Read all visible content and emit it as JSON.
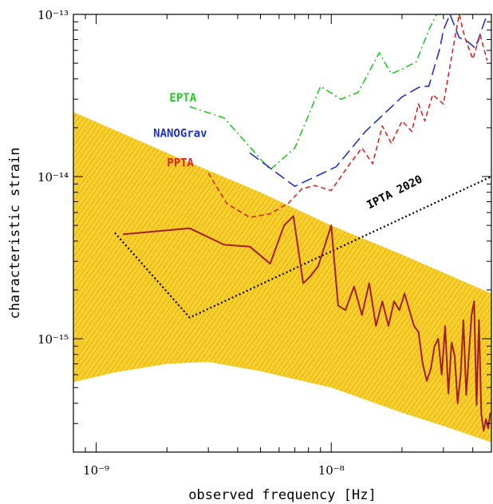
{
  "chart_data": {
    "type": "line",
    "xlabel": "observed frequency [Hz]",
    "ylabel": "characteristic strain",
    "x_scale": "log",
    "y_scale": "log",
    "xlim": [
      8e-10,
      4.8e-08
    ],
    "ylim": [
      2e-16,
      1e-13
    ],
    "x_ticks": [
      {
        "value": 1e-09,
        "label": "10⁻⁹"
      },
      {
        "value": 1e-08,
        "label": "10⁻⁸"
      }
    ],
    "y_ticks": [
      {
        "value": 1e-15,
        "label": "10⁻¹⁵"
      },
      {
        "value": 1e-14,
        "label": "10⁻¹⁴"
      },
      {
        "value": 1e-13,
        "label": "10⁻¹³"
      }
    ],
    "band": {
      "color": "#f2c000",
      "upper": [
        [
          8e-10,
          2.5e-14
        ],
        [
          2e-09,
          1.4e-14
        ],
        [
          5e-09,
          8e-15
        ],
        [
          1e-08,
          5e-15
        ],
        [
          2e-08,
          3.3e-15
        ],
        [
          4.8e-08,
          1.9e-15
        ]
      ],
      "lower": [
        [
          4.8e-08,
          2.3e-16
        ],
        [
          3e-08,
          2.9e-16
        ],
        [
          2e-08,
          3.5e-16
        ],
        [
          1e-08,
          5e-16
        ],
        [
          5e-09,
          6.3e-16
        ],
        [
          3e-09,
          7.2e-16
        ],
        [
          2e-09,
          7e-16
        ],
        [
          1.2e-09,
          6.2e-16
        ],
        [
          8e-10,
          5.4e-16
        ]
      ]
    },
    "series": [
      {
        "name": "EPTA",
        "color": "#22c922",
        "dash": "9,4,2,4",
        "x": [
          2.5e-09,
          3.5e-09,
          5.5e-09,
          7e-09,
          9e-09,
          1.1e-08,
          1.3e-08,
          1.6e-08,
          1.8e-08,
          2e-08,
          2.3e-08,
          2.6e-08,
          2.8e-08,
          3e-08
        ],
        "y": [
          2.7e-14,
          2.3e-14,
          1.1e-14,
          1.5e-14,
          3.6e-14,
          3e-14,
          3.3e-14,
          5.8e-14,
          4.3e-14,
          4.6e-14,
          5.1e-14,
          8e-14,
          1e-13,
          1e-13
        ]
      },
      {
        "name": "NANOGrav",
        "color": "#2233cc",
        "dash": "14,6",
        "x": [
          4.5e-09,
          7e-09,
          1.05e-08,
          1.4e-08,
          2e-08,
          2.4e-08,
          2.6e-08,
          2.9e-08,
          3e-08,
          3.2e-08,
          3.5e-08,
          3.8e-08,
          4.1e-08,
          4.6e-08
        ],
        "y": [
          1.4e-14,
          8.7e-15,
          1.15e-14,
          1.9e-14,
          3.1e-14,
          3.6e-14,
          3.6e-14,
          6.2e-14,
          8e-14,
          1e-13,
          7.2e-14,
          6.8e-14,
          6.2e-14,
          1e-13
        ]
      },
      {
        "name": "PPTA",
        "color": "#dd2222",
        "dash": "6,4",
        "x": [
          3e-09,
          3.6e-09,
          4.5e-09,
          5.5e-09,
          6.6e-09,
          7.5e-09,
          8.5e-09,
          1e-08,
          1.2e-08,
          1.35e-08,
          1.5e-08,
          1.65e-08,
          1.8e-08,
          2e-08,
          2.2e-08,
          2.35e-08,
          2.5e-08,
          2.7e-08,
          3e-08,
          3.3e-08,
          3.5e-08,
          3.7e-08,
          4e-08,
          4.3e-08,
          4.6e-08
        ],
        "y": [
          1.05e-14,
          6.8e-15,
          5.6e-15,
          5.9e-15,
          6.9e-15,
          8.4e-15,
          8.8e-15,
          8.2e-15,
          1.2e-14,
          1.5e-14,
          1.2e-14,
          2.05e-14,
          1.6e-14,
          2.2e-14,
          1.9e-14,
          2.8e-14,
          2.2e-14,
          3.2e-14,
          2.8e-14,
          6.2e-14,
          1e-13,
          7.2e-14,
          5.3e-14,
          7.5e-14,
          5.2e-14
        ]
      },
      {
        "name": "IPTA 2020",
        "color": "#000000",
        "dash": "2,3",
        "x": [
          1.2e-09,
          2.5e-09,
          4.8e-08
        ],
        "y": [
          4.5e-15,
          1.35e-15,
          1e-14
        ]
      },
      {
        "name": "",
        "color": "#a81e1e",
        "dash": "",
        "x": [
          1.3e-09,
          2.5e-09,
          3.5e-09,
          4.5e-09,
          5.5e-09,
          6.3e-09,
          6.9e-09,
          7.6e-09,
          8.1e-09,
          8.8e-09,
          1e-08,
          1.07e-08,
          1.15e-08,
          1.25e-08,
          1.35e-08,
          1.45e-08,
          1.55e-08,
          1.65e-08,
          1.75e-08,
          1.85e-08,
          1.95e-08,
          2.05e-08,
          2.15e-08,
          2.25e-08,
          2.35e-08,
          2.45e-08,
          2.55e-08,
          2.65e-08,
          2.75e-08,
          2.85e-08,
          2.95e-08,
          3.05e-08,
          3.15e-08,
          3.25e-08,
          3.35e-08,
          3.45e-08,
          3.55e-08,
          3.65e-08,
          3.75e-08,
          3.85e-08,
          3.95e-08,
          4.05e-08,
          4.15e-08,
          4.25e-08,
          4.35e-08,
          4.45e-08,
          4.55e-08,
          4.65e-08,
          4.75e-08
        ],
        "y": [
          4.4e-15,
          4.8e-15,
          3.8e-15,
          3.7e-15,
          2.9e-15,
          5e-15,
          5.7e-15,
          2.2e-15,
          2.4e-15,
          2.8e-15,
          5e-15,
          1.6e-15,
          1.5e-15,
          2.1e-15,
          1.4e-15,
          2.2e-15,
          1.2e-15,
          1.7e-15,
          1.2e-15,
          1.7e-15,
          1.5e-15,
          1.9e-15,
          1.5e-15,
          1.2e-15,
          1.1e-15,
          7e-16,
          5.5e-16,
          6.5e-16,
          9e-16,
          1e-15,
          6e-16,
          1.2e-15,
          4.6e-16,
          9.5e-16,
          7.8e-16,
          4e-16,
          6e-16,
          1.3e-15,
          4.5e-16,
          8e-16,
          1.4e-15,
          1.7e-15,
          3.9e-16,
          1.3e-15,
          3.4e-16,
          2.7e-16,
          3.2e-16,
          2.8e-16,
          3.5e-16
        ]
      }
    ],
    "annotations": [
      {
        "text": "EPTA",
        "color": "#22c922",
        "x": 2.05e-09,
        "y": 2.9e-14
      },
      {
        "text": "NANOGrav",
        "color": "#2233cc",
        "x": 1.75e-09,
        "y": 1.75e-14
      },
      {
        "text": "PPTA",
        "color": "#dd2222",
        "x": 2e-09,
        "y": 1.15e-14
      },
      {
        "text": "IPTA 2020",
        "color": "#000000",
        "x": 1.45e-08,
        "y": 6.3e-15,
        "rotate": -27
      }
    ]
  }
}
